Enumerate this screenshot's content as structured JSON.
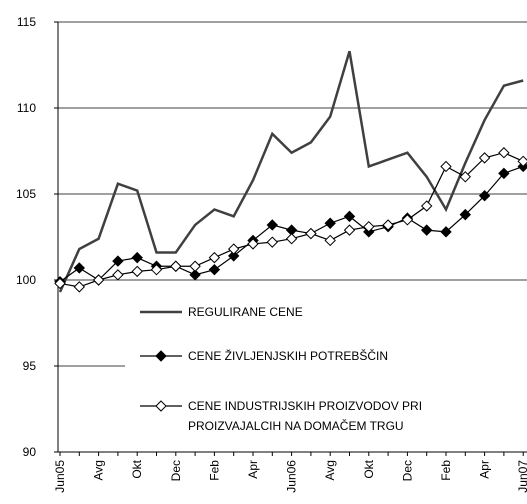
{
  "chart_data": {
    "type": "line",
    "categories": [
      "Jun05",
      null,
      "Avg",
      null,
      "Okt",
      null,
      "Dec",
      null,
      "Feb",
      null,
      "Apr",
      null,
      "Jun06",
      null,
      "Avg",
      null,
      "Okt",
      null,
      "Dec",
      null,
      "Feb",
      null,
      "Apr",
      null,
      "Jun07"
    ],
    "series": [
      {
        "name": "REGULIRANE CENE",
        "color": "#404040",
        "marker": "none",
        "values": [
          99.3,
          101.8,
          102.4,
          105.6,
          105.2,
          101.6,
          101.6,
          103.2,
          104.1,
          103.7,
          105.8,
          108.5,
          107.4,
          108.0,
          109.5,
          113.3,
          106.6,
          107.0,
          107.4,
          106.0,
          104.1,
          106.8,
          109.3,
          111.3,
          111.6
        ]
      },
      {
        "name": "CENE ŽIVLJENJSKIH POTREBŠČIN",
        "color": "#000000",
        "marker": "filled-diamond",
        "values": [
          99.9,
          100.7,
          100.0,
          101.1,
          101.3,
          100.8,
          100.8,
          100.3,
          100.6,
          101.4,
          102.3,
          103.2,
          102.9,
          102.7,
          103.3,
          103.7,
          102.8,
          103.1,
          103.6,
          102.9,
          102.8,
          103.8,
          104.9,
          106.2,
          106.6
        ]
      },
      {
        "name": "CENE INDUSTRIJSKIH PROIZVODOV PRI PROIZVAJALCIH NA DOMAČEM TRGU",
        "color": "#000000",
        "marker": "open-diamond",
        "values": [
          99.8,
          99.6,
          100.0,
          100.3,
          100.5,
          100.6,
          100.8,
          100.8,
          101.3,
          101.8,
          102.1,
          102.2,
          102.4,
          102.7,
          102.3,
          102.9,
          103.1,
          103.2,
          103.5,
          104.3,
          106.6,
          106.0,
          107.1,
          107.4,
          106.9
        ]
      }
    ],
    "ylim": [
      90,
      115
    ],
    "yticks": [
      90,
      95,
      100,
      105,
      110,
      115
    ],
    "grid": true
  }
}
